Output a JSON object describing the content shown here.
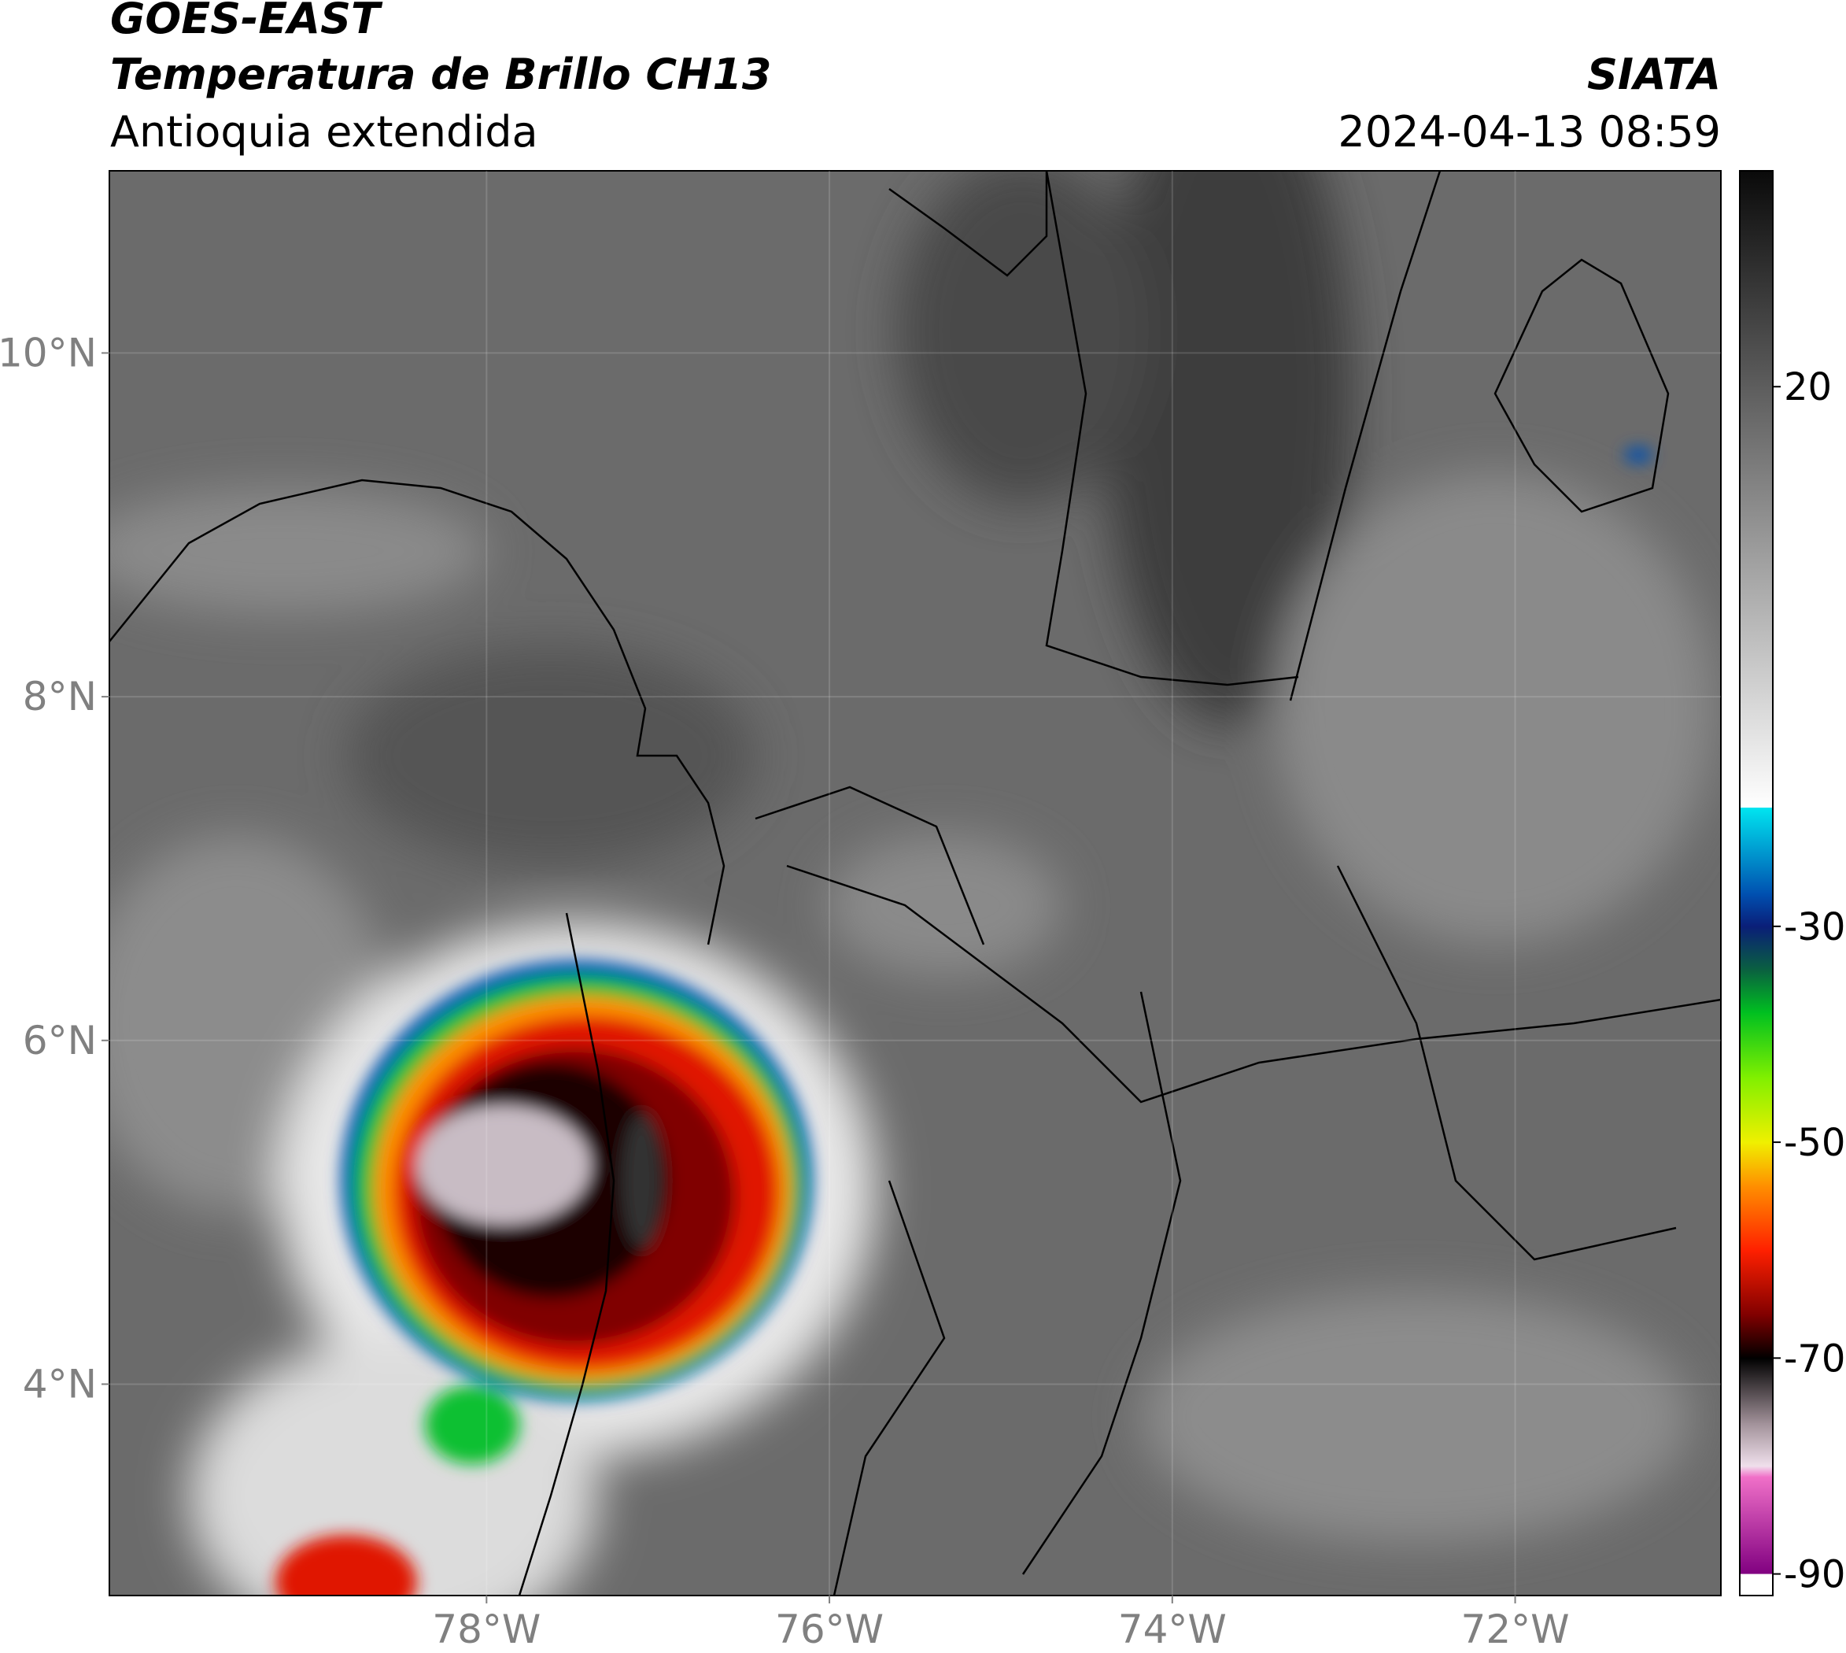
{
  "header": {
    "satellite": "GOES-EAST",
    "product": "Temperatura de Brillo CH13",
    "region": "Antioquia extendida",
    "source": "SIATA",
    "datetime": "2024-04-13 08:59"
  },
  "chart_data": {
    "type": "map",
    "xlim": [
      -80.2,
      -70.8
    ],
    "ylim": [
      2.77,
      11.06
    ],
    "xticks": [
      {
        "value": -78,
        "label": "78°W"
      },
      {
        "value": -76,
        "label": "76°W"
      },
      {
        "value": -74,
        "label": "74°W"
      },
      {
        "value": -72,
        "label": "72°W"
      }
    ],
    "yticks": [
      {
        "value": 4,
        "label": "4°N"
      },
      {
        "value": 6,
        "label": "6°N"
      },
      {
        "value": 8,
        "label": "8°N"
      },
      {
        "value": 10,
        "label": "10°N"
      }
    ],
    "grid": true,
    "colorbar": {
      "lim": [
        -92,
        40
      ],
      "ticks": [
        20,
        -30,
        -50,
        -70,
        -90
      ],
      "stops": [
        {
          "value": 40,
          "color": "#0a0a0a"
        },
        {
          "value": -19,
          "color": "#ffffff"
        },
        {
          "value": -19,
          "color": "#00e5f0"
        },
        {
          "value": -27,
          "color": "#0050b0"
        },
        {
          "value": -30,
          "color": "#0a1e78"
        },
        {
          "value": -34,
          "color": "#0a6040"
        },
        {
          "value": -38,
          "color": "#00c020"
        },
        {
          "value": -44,
          "color": "#80f000"
        },
        {
          "value": -50,
          "color": "#f0f000"
        },
        {
          "value": -54,
          "color": "#ff9000"
        },
        {
          "value": -60,
          "color": "#ff2000"
        },
        {
          "value": -66,
          "color": "#800000"
        },
        {
          "value": -70,
          "color": "#000000"
        },
        {
          "value": -76,
          "color": "#a09098"
        },
        {
          "value": -80,
          "color": "#f0e0ec"
        },
        {
          "value": -81,
          "color": "#f070c8"
        },
        {
          "value": -90,
          "color": "#800080"
        },
        {
          "value": -90,
          "color": "#ffffff"
        },
        {
          "value": -92,
          "color": "#ffffff"
        }
      ]
    }
  }
}
